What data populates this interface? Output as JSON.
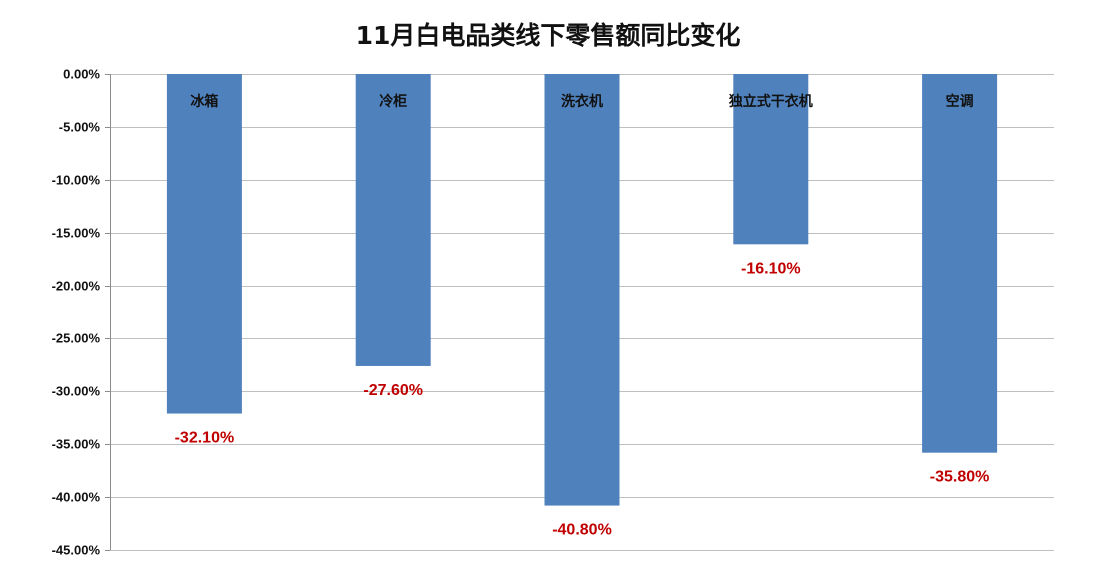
{
  "chart_data": {
    "type": "bar",
    "title": "11月白电品类线下零售额同比变化",
    "categories": [
      "冰箱",
      "冷柜",
      "洗衣机",
      "独立式干衣机",
      "空调"
    ],
    "values": [
      -32.1,
      -27.6,
      -40.8,
      -16.1,
      -35.8
    ],
    "data_labels": [
      "-32.10%",
      "-27.60%",
      "-40.80%",
      "-16.10%",
      "-35.80%"
    ],
    "ylim": [
      -45,
      0
    ],
    "yticks": [
      0,
      -5,
      -10,
      -15,
      -20,
      -25,
      -30,
      -35,
      -40,
      -45
    ],
    "ytick_labels": [
      "0.00%",
      "-5.00%",
      "-10.00%",
      "-15.00%",
      "-20.00%",
      "-25.00%",
      "-30.00%",
      "-35.00%",
      "-40.00%",
      "-45.00%"
    ],
    "grid": true,
    "xlabel": "",
    "ylabel": "",
    "colors": {
      "bar": "#4f81bd",
      "label": "#c00000",
      "grid": "#bfbfbf"
    }
  }
}
